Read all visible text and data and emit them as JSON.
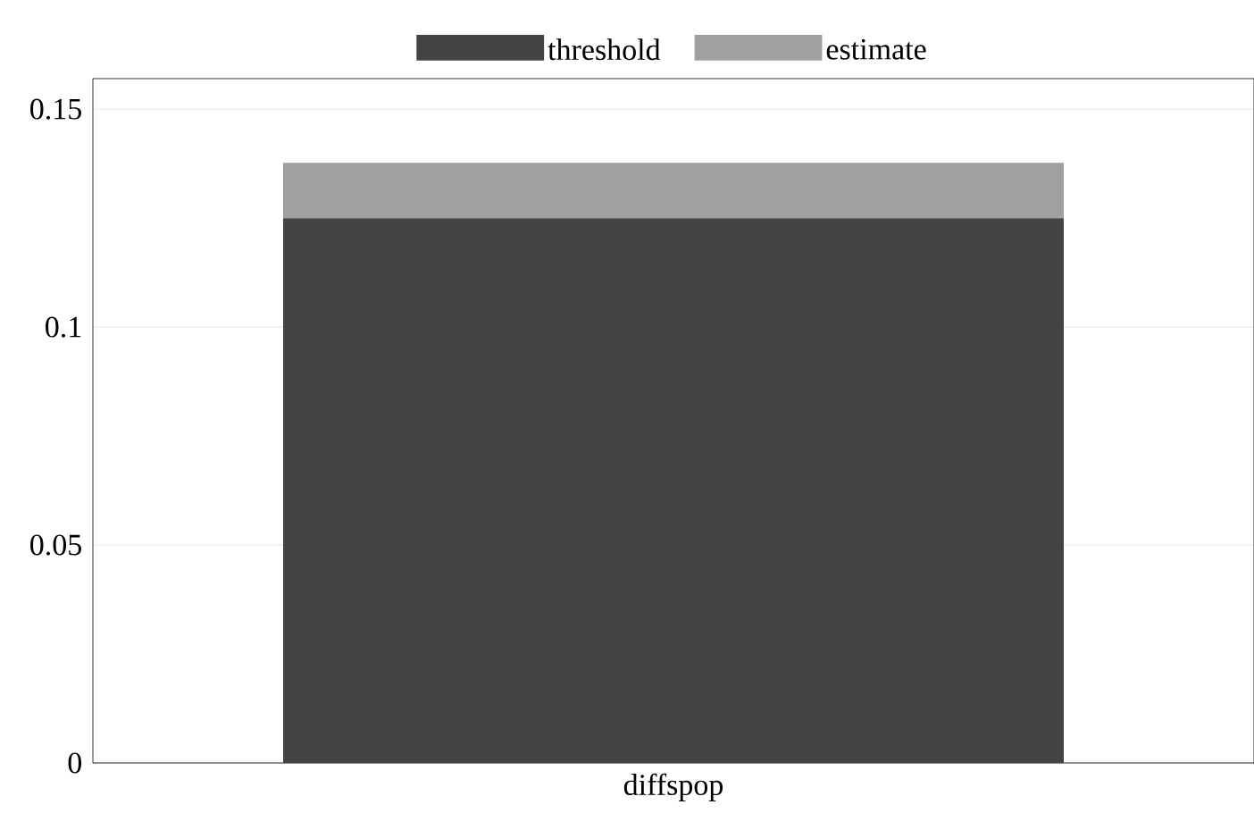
{
  "chart_data": {
    "type": "bar",
    "stacked": true,
    "categories": [
      "diffspop"
    ],
    "series": [
      {
        "name": "threshold",
        "color": "#444444",
        "values": [
          0.125
        ]
      },
      {
        "name": "estimate",
        "color": "#a0a0a0",
        "values": [
          0.0127
        ]
      }
    ],
    "ylim": [
      0,
      0.157
    ],
    "yticks": [
      0,
      0.05,
      0.1,
      0.15
    ],
    "grid": "y",
    "legend": "top"
  }
}
